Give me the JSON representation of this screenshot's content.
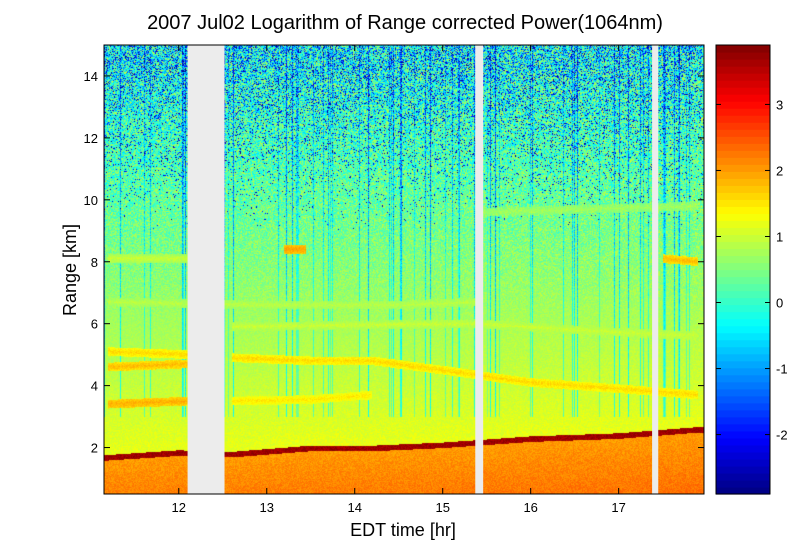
{
  "chart_data": {
    "type": "heatmap",
    "title": "2007 Jul02  Logarithm of Range corrected Power(1064nm)",
    "xlabel": "EDT time [hr]",
    "ylabel": "Range [km]",
    "xlim": [
      11.15,
      17.97
    ],
    "ylim": [
      0.5,
      15
    ],
    "x_ticks": [
      12,
      13,
      14,
      15,
      16,
      17
    ],
    "y_ticks": [
      2,
      4,
      6,
      8,
      10,
      12,
      14
    ],
    "colorbar": {
      "range": [
        -2.9,
        3.9
      ],
      "ticks": [
        -2,
        -1,
        0,
        1,
        2,
        3
      ],
      "colormap": "jet"
    },
    "data_gaps_hr": [
      [
        12.1,
        12.52
      ],
      [
        15.37,
        15.46
      ],
      [
        17.38,
        17.45
      ]
    ],
    "boundary_layer_top_km": [
      {
        "x": 11.2,
        "y": 1.7
      },
      {
        "x": 12.0,
        "y": 1.85
      },
      {
        "x": 12.6,
        "y": 1.8
      },
      {
        "x": 13.5,
        "y": 2.0
      },
      {
        "x": 14.2,
        "y": 2.0
      },
      {
        "x": 15.0,
        "y": 2.1
      },
      {
        "x": 16.0,
        "y": 2.3
      },
      {
        "x": 17.0,
        "y": 2.4
      },
      {
        "x": 17.9,
        "y": 2.6
      }
    ],
    "aerosol_layers_km": [
      {
        "points": [
          {
            "x": 11.2,
            "y": 3.4
          },
          {
            "x": 12.1,
            "y": 3.5
          }
        ],
        "level": 1.9
      },
      {
        "points": [
          {
            "x": 11.2,
            "y": 5.1
          },
          {
            "x": 12.1,
            "y": 5.0
          }
        ],
        "level": 1.6
      },
      {
        "points": [
          {
            "x": 11.2,
            "y": 4.6
          },
          {
            "x": 12.1,
            "y": 4.7
          }
        ],
        "level": 1.8
      },
      {
        "points": [
          {
            "x": 12.6,
            "y": 4.9
          },
          {
            "x": 13.5,
            "y": 4.8
          },
          {
            "x": 14.2,
            "y": 4.8
          },
          {
            "x": 15.0,
            "y": 4.5
          },
          {
            "x": 15.37,
            "y": 4.35
          },
          {
            "x": 16.0,
            "y": 4.1
          },
          {
            "x": 17.0,
            "y": 3.9
          },
          {
            "x": 17.9,
            "y": 3.7
          }
        ],
        "level": 1.6
      },
      {
        "points": [
          {
            "x": 12.6,
            "y": 3.5
          },
          {
            "x": 13.5,
            "y": 3.55
          },
          {
            "x": 14.2,
            "y": 3.7
          }
        ],
        "level": 1.5
      },
      {
        "points": [
          {
            "x": 11.2,
            "y": 6.7
          },
          {
            "x": 13.0,
            "y": 6.6
          },
          {
            "x": 14.5,
            "y": 6.6
          },
          {
            "x": 15.37,
            "y": 6.7
          }
        ],
        "level": 0.9
      },
      {
        "points": [
          {
            "x": 12.6,
            "y": 5.9
          },
          {
            "x": 14.0,
            "y": 5.95
          },
          {
            "x": 15.37,
            "y": 6.0
          },
          {
            "x": 16.5,
            "y": 5.8
          },
          {
            "x": 17.9,
            "y": 5.6
          }
        ],
        "level": 1.0
      },
      {
        "points": [
          {
            "x": 13.2,
            "y": 8.4
          },
          {
            "x": 13.45,
            "y": 8.4
          }
        ],
        "level": 2.0
      },
      {
        "points": [
          {
            "x": 17.5,
            "y": 8.1
          },
          {
            "x": 17.9,
            "y": 8.0
          }
        ],
        "level": 1.8
      },
      {
        "points": [
          {
            "x": 11.2,
            "y": 8.1
          },
          {
            "x": 12.1,
            "y": 8.1
          }
        ],
        "level": 1.0
      },
      {
        "points": [
          {
            "x": 15.46,
            "y": 9.6
          },
          {
            "x": 17.9,
            "y": 9.8
          }
        ],
        "level": 0.7
      }
    ]
  }
}
